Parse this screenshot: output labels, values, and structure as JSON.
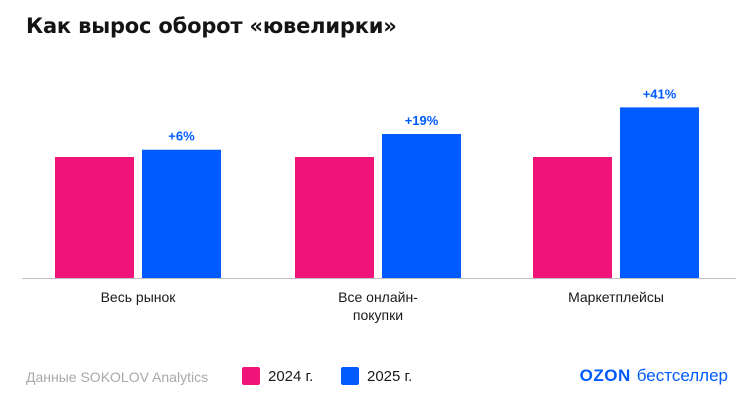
{
  "title": "Как вырос оборот «ювелирки»",
  "footer": {
    "source": "Данные SOKOLOV Analytics",
    "brand_logo": "OZON",
    "brand_text": "бестселлер"
  },
  "colors": {
    "y2024": "#f0147a",
    "y2025": "#005bff"
  },
  "chart_data": {
    "type": "bar",
    "categories": [
      "Весь рынок",
      "Все онлайн-\nпокупки",
      "Маркетплейсы"
    ],
    "series": [
      {
        "name": "2024 г.",
        "values": [
          100,
          100,
          100
        ]
      },
      {
        "name": "2025 г.",
        "values": [
          106,
          119,
          141
        ]
      }
    ],
    "data_labels": [
      "+6%",
      "+19%",
      "+41%"
    ],
    "ylim": [
      0,
      150
    ],
    "legend": "bottom",
    "grid": false
  }
}
